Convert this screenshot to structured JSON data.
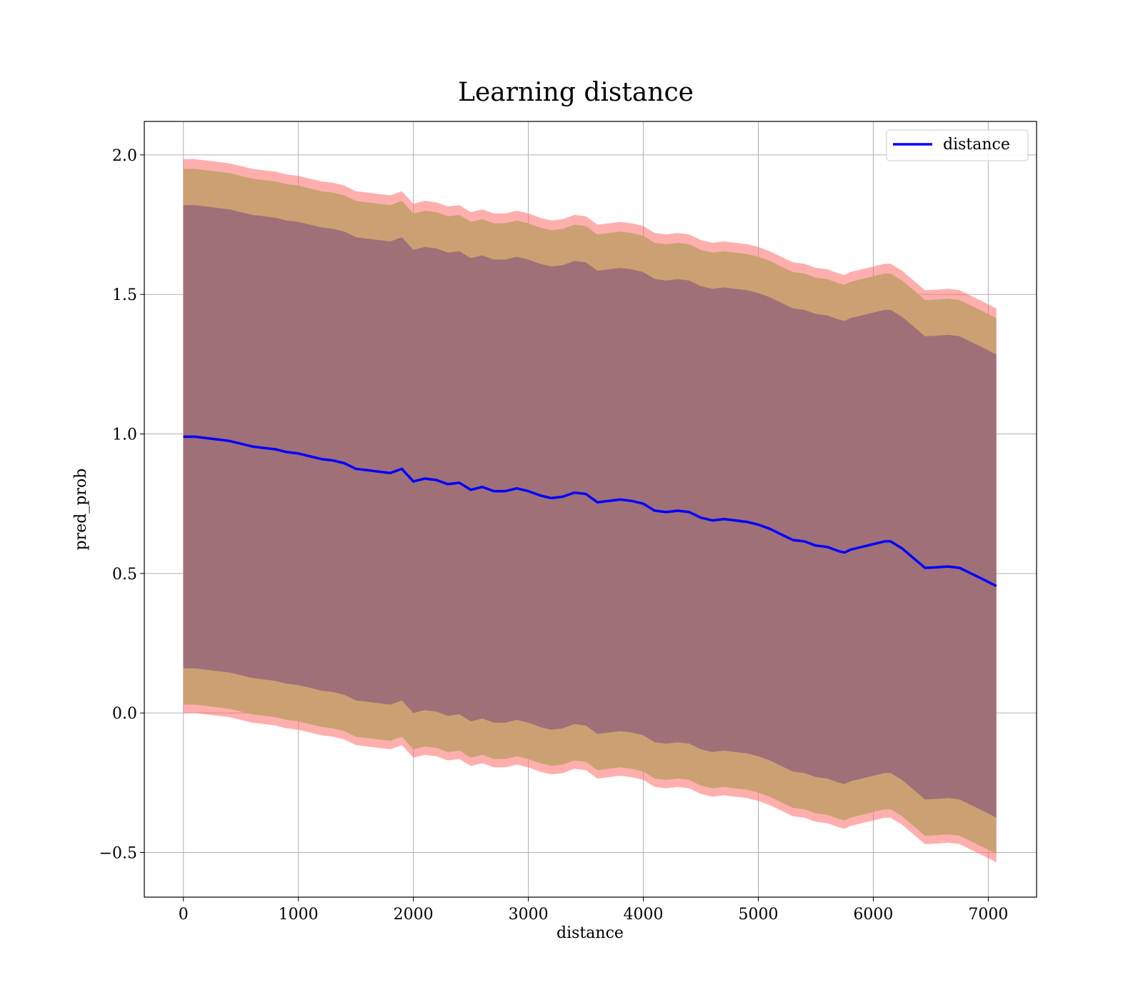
{
  "chart_data": {
    "type": "line",
    "title": "Learning distance",
    "xlabel": "distance",
    "ylabel": "pred_prob",
    "xlim": [
      -340,
      7420
    ],
    "ylim": [
      -0.66,
      2.12
    ],
    "xticks": [
      0,
      1000,
      2000,
      3000,
      4000,
      5000,
      6000,
      7000
    ],
    "yticks": [
      -0.5,
      0.0,
      0.5,
      1.0,
      1.5,
      2.0
    ],
    "xtick_labels": [
      "0",
      "1000",
      "2000",
      "3000",
      "4000",
      "5000",
      "6000",
      "7000"
    ],
    "ytick_labels": [
      "−0.5",
      "0.0",
      "0.5",
      "1.0",
      "1.5",
      "2.0"
    ],
    "grid": true,
    "legend_position": "top-right",
    "colors": {
      "line": "#0000ff",
      "band_outer": "#ff6b6b",
      "band_middle": "#c8a070",
      "band_inner": "#a07078",
      "grid": "#b0b0b0"
    },
    "series": [
      {
        "name": "distance",
        "x": [
          0,
          100,
          200,
          300,
          400,
          500,
          600,
          700,
          800,
          900,
          1000,
          1100,
          1200,
          1300,
          1400,
          1500,
          1600,
          1700,
          1800,
          1900,
          2000,
          2100,
          2200,
          2300,
          2400,
          2500,
          2600,
          2700,
          2800,
          2900,
          3000,
          3100,
          3200,
          3300,
          3400,
          3500,
          3600,
          3700,
          3800,
          3900,
          4000,
          4100,
          4200,
          4300,
          4400,
          4500,
          4600,
          4700,
          4800,
          4900,
          5000,
          5100,
          5200,
          5300,
          5400,
          5500,
          5600,
          5700,
          5750,
          5800,
          5900,
          6000,
          6100,
          6150,
          6250,
          6350,
          6450,
          6550,
          6650,
          6750,
          6850,
          6950,
          7070
        ],
        "y": [
          0.99,
          0.99,
          0.985,
          0.98,
          0.975,
          0.965,
          0.955,
          0.95,
          0.945,
          0.935,
          0.93,
          0.92,
          0.91,
          0.905,
          0.895,
          0.875,
          0.87,
          0.865,
          0.86,
          0.875,
          0.83,
          0.84,
          0.835,
          0.82,
          0.825,
          0.8,
          0.81,
          0.795,
          0.795,
          0.805,
          0.795,
          0.78,
          0.77,
          0.775,
          0.79,
          0.785,
          0.755,
          0.76,
          0.765,
          0.76,
          0.75,
          0.725,
          0.72,
          0.725,
          0.72,
          0.7,
          0.69,
          0.695,
          0.69,
          0.685,
          0.675,
          0.66,
          0.64,
          0.62,
          0.615,
          0.6,
          0.595,
          0.58,
          0.575,
          0.585,
          0.595,
          0.605,
          0.615,
          0.615,
          0.59,
          0.555,
          0.52,
          0.522,
          0.525,
          0.52,
          0.5,
          0.48,
          0.455
        ],
        "band_outer_lower_offset": 0.99,
        "band_outer_upper_offset": 0.995,
        "band_middle_offset": 0.96,
        "band_inner_offset": 0.83
      }
    ]
  }
}
